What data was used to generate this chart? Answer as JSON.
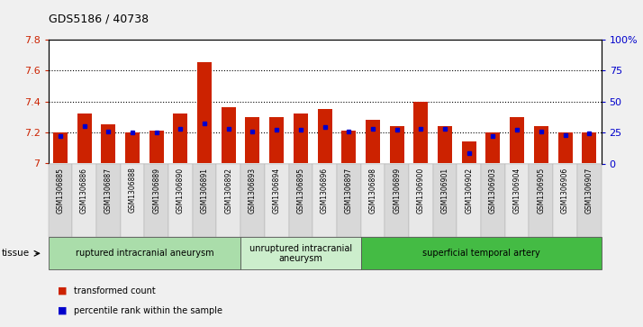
{
  "title": "GDS5186 / 40738",
  "samples": [
    "GSM1306885",
    "GSM1306886",
    "GSM1306887",
    "GSM1306888",
    "GSM1306889",
    "GSM1306890",
    "GSM1306891",
    "GSM1306892",
    "GSM1306893",
    "GSM1306894",
    "GSM1306895",
    "GSM1306896",
    "GSM1306897",
    "GSM1306898",
    "GSM1306899",
    "GSM1306900",
    "GSM1306901",
    "GSM1306902",
    "GSM1306903",
    "GSM1306904",
    "GSM1306905",
    "GSM1306906",
    "GSM1306907"
  ],
  "red_values": [
    7.2,
    7.32,
    7.25,
    7.2,
    7.21,
    7.32,
    7.65,
    7.36,
    7.3,
    7.3,
    7.32,
    7.35,
    7.21,
    7.28,
    7.24,
    7.4,
    7.24,
    7.14,
    7.2,
    7.3,
    7.24,
    7.2,
    7.2
  ],
  "blue_values": [
    22,
    30,
    26,
    25,
    25,
    28,
    32,
    28,
    26,
    27,
    27,
    29,
    26,
    28,
    27,
    28,
    28,
    8,
    22,
    27,
    26,
    23,
    24
  ],
  "ylim_left": [
    7.0,
    7.8
  ],
  "ylim_right": [
    0,
    100
  ],
  "yticks_left": [
    7.0,
    7.2,
    7.4,
    7.6,
    7.8
  ],
  "yticks_right": [
    0,
    25,
    50,
    75,
    100
  ],
  "ytick_labels_right": [
    "0",
    "25",
    "50",
    "75",
    "100%"
  ],
  "ytick_labels_left": [
    "7",
    "7.2",
    "7.4",
    "7.6",
    "7.8"
  ],
  "groups": [
    {
      "label": "ruptured intracranial aneurysm",
      "start": 0,
      "end": 8,
      "color": "#aaddaa"
    },
    {
      "label": "unruptured intracranial\naneurysm",
      "start": 8,
      "end": 13,
      "color": "#cceecc"
    },
    {
      "label": "superficial temporal artery",
      "start": 13,
      "end": 23,
      "color": "#44bb44"
    }
  ],
  "bar_color": "#cc2200",
  "dot_color": "#0000cc",
  "plot_bg": "#ffffff",
  "fig_bg": "#f0f0f0",
  "xtick_bg_even": "#d8d8d8",
  "xtick_bg_odd": "#e8e8e8",
  "grid_color": "#000000",
  "ylabel_left_color": "#cc2200",
  "ylabel_right_color": "#0000cc",
  "tissue_label": "tissue",
  "legend_red": "transformed count",
  "legend_blue": "percentile rank within the sample"
}
